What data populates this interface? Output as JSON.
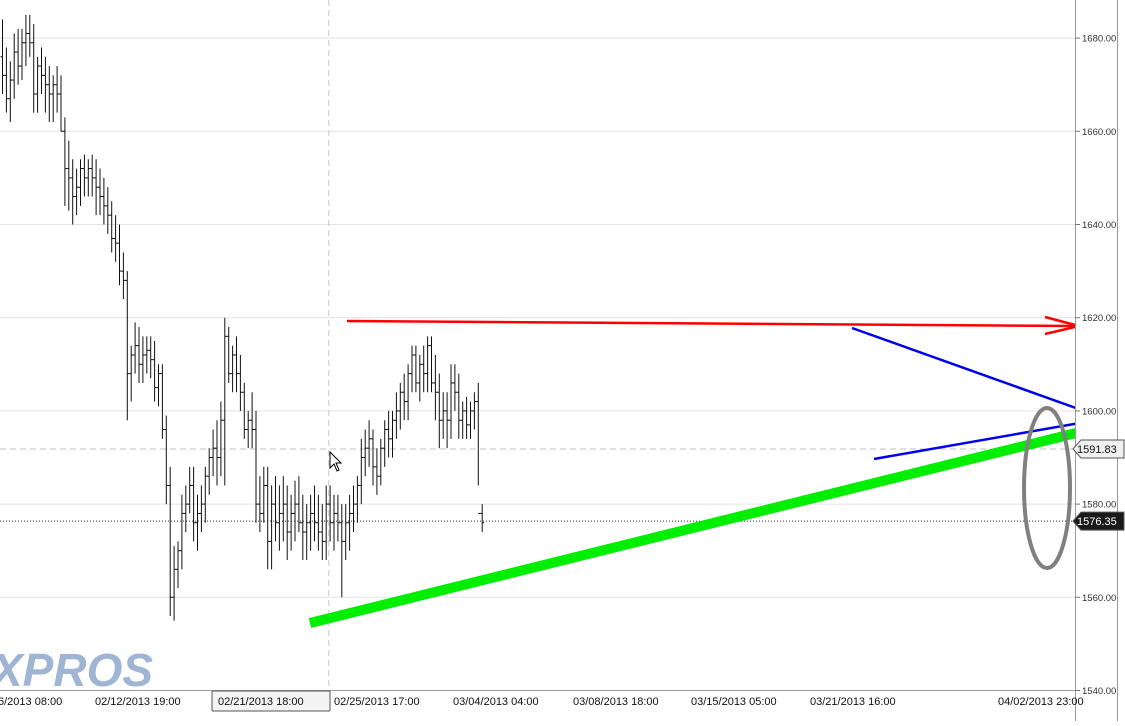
{
  "chart_data": {
    "type": "ohlc",
    "title": "",
    "xlabel": "",
    "ylabel": "",
    "ylim": [
      1540,
      1690
    ],
    "y_ticks": [
      1540,
      1560,
      1580,
      1600,
      1620,
      1640,
      1660,
      1680
    ],
    "y_tick_labels": [
      "1540.00",
      "1560.00",
      "1580.00",
      "1600.00",
      "1620.00",
      "1640.00",
      "1660.00",
      "1680.00"
    ],
    "x_tick_labels": [
      {
        "label": "6/2013 08:00",
        "bar": 0
      },
      {
        "label": "02/12/2013 19:00",
        "bar": 26
      },
      {
        "label": "02/21/2013 18:00",
        "bar": 62,
        "highlighted": true
      },
      {
        "label": "02/25/2013 17:00",
        "bar": 82
      },
      {
        "label": "03/04/2013 04:00",
        "bar": 114
      },
      {
        "label": "03/08/2013 18:00",
        "bar": 146
      },
      {
        "label": "03/15/2013 05:00",
        "bar": 178
      },
      {
        "label": "03/21/2013 16:00",
        "bar": 210
      },
      {
        "label": "04/02/2013 23:00",
        "bar": 260
      }
    ],
    "price_tags": [
      {
        "label": "1591.83",
        "value": 1591.83,
        "style": "light"
      },
      {
        "label": "1576.35",
        "value": 1576.35,
        "style": "dark"
      }
    ],
    "reference_lines": [
      {
        "value": 1591.83,
        "style": "dashed"
      },
      {
        "value": 1576.35,
        "style": "dotted"
      }
    ],
    "crosshair_bar": 62,
    "watermark": "XPROS",
    "grid": true,
    "bars": [
      [
        1676,
        1684,
        1668,
        1672
      ],
      [
        1672,
        1678,
        1664,
        1667
      ],
      [
        1667,
        1675,
        1662,
        1671
      ],
      [
        1671,
        1681,
        1667,
        1677
      ],
      [
        1677,
        1682,
        1670,
        1674
      ],
      [
        1674,
        1682,
        1671,
        1679
      ],
      [
        1679,
        1685,
        1674,
        1681
      ],
      [
        1681,
        1685,
        1676,
        1679
      ],
      [
        1679,
        1683,
        1664,
        1668
      ],
      [
        1668,
        1676,
        1664,
        1674
      ],
      [
        1674,
        1678,
        1668,
        1672
      ],
      [
        1672,
        1676,
        1664,
        1670
      ],
      [
        1670,
        1674,
        1662,
        1668
      ],
      [
        1668,
        1672,
        1662,
        1670
      ],
      [
        1670,
        1674,
        1664,
        1668
      ],
      [
        1668,
        1672,
        1660,
        1660
      ],
      [
        1660,
        1663,
        1644,
        1652
      ],
      [
        1652,
        1658,
        1643,
        1650
      ],
      [
        1650,
        1654,
        1640,
        1646
      ],
      [
        1646,
        1652,
        1642,
        1648
      ],
      [
        1648,
        1654,
        1644,
        1652
      ],
      [
        1652,
        1655,
        1646,
        1650
      ],
      [
        1650,
        1654,
        1646,
        1652
      ],
      [
        1652,
        1655,
        1646,
        1650
      ],
      [
        1650,
        1654,
        1642,
        1648
      ],
      [
        1648,
        1652,
        1642,
        1646
      ],
      [
        1646,
        1650,
        1640,
        1644
      ],
      [
        1644,
        1648,
        1638,
        1642
      ],
      [
        1642,
        1645,
        1634,
        1637
      ],
      [
        1637,
        1642,
        1632,
        1636
      ],
      [
        1636,
        1640,
        1627,
        1630
      ],
      [
        1630,
        1634,
        1624,
        1628
      ],
      [
        1628,
        1630,
        1598,
        1608
      ],
      [
        1608,
        1614,
        1602,
        1612
      ],
      [
        1612,
        1619,
        1608,
        1614
      ],
      [
        1614,
        1618,
        1606,
        1610
      ],
      [
        1610,
        1616,
        1606,
        1612
      ],
      [
        1612,
        1616,
        1608,
        1613
      ],
      [
        1613,
        1616,
        1607,
        1611
      ],
      [
        1611,
        1615,
        1602,
        1605
      ],
      [
        1605,
        1610,
        1601,
        1608
      ],
      [
        1608,
        1610,
        1594,
        1596
      ],
      [
        1596,
        1599,
        1580,
        1584
      ],
      [
        1584,
        1588,
        1556,
        1560
      ],
      [
        1560,
        1571,
        1555,
        1566
      ],
      [
        1566,
        1572,
        1562,
        1570
      ],
      [
        1570,
        1582,
        1566,
        1578
      ],
      [
        1578,
        1584,
        1574,
        1580
      ],
      [
        1580,
        1588,
        1578,
        1584
      ],
      [
        1584,
        1588,
        1572,
        1576
      ],
      [
        1576,
        1582,
        1570,
        1578
      ],
      [
        1578,
        1584,
        1574,
        1580
      ],
      [
        1580,
        1588,
        1576,
        1586
      ],
      [
        1586,
        1592,
        1582,
        1590
      ],
      [
        1590,
        1596,
        1586,
        1592
      ],
      [
        1592,
        1598,
        1584,
        1590
      ],
      [
        1590,
        1602,
        1586,
        1598
      ],
      [
        1598,
        1620,
        1584,
        1616
      ],
      [
        1616,
        1618,
        1606,
        1608
      ],
      [
        1608,
        1614,
        1604,
        1612
      ],
      [
        1612,
        1616,
        1604,
        1608
      ],
      [
        1608,
        1612,
        1600,
        1604
      ],
      [
        1604,
        1606,
        1594,
        1596
      ],
      [
        1596,
        1600,
        1592,
        1598
      ],
      [
        1598,
        1604,
        1592,
        1596
      ],
      [
        1596,
        1600,
        1576,
        1580
      ],
      [
        1580,
        1586,
        1574,
        1578
      ],
      [
        1578,
        1588,
        1576,
        1584
      ],
      [
        1584,
        1588,
        1566,
        1572
      ],
      [
        1572,
        1584,
        1566,
        1580
      ],
      [
        1580,
        1586,
        1572,
        1576
      ],
      [
        1576,
        1584,
        1570,
        1578
      ],
      [
        1578,
        1586,
        1572,
        1580
      ],
      [
        1580,
        1584,
        1568,
        1574
      ],
      [
        1574,
        1582,
        1570,
        1578
      ],
      [
        1578,
        1585,
        1572,
        1580
      ],
      [
        1580,
        1586,
        1574,
        1576
      ],
      [
        1576,
        1582,
        1568,
        1574
      ],
      [
        1574,
        1580,
        1568,
        1576
      ],
      [
        1576,
        1582,
        1570,
        1578
      ],
      [
        1578,
        1584,
        1572,
        1576
      ],
      [
        1576,
        1582,
        1570,
        1574
      ],
      [
        1574,
        1580,
        1568,
        1572
      ],
      [
        1572,
        1584,
        1568,
        1580
      ],
      [
        1580,
        1584,
        1572,
        1576
      ],
      [
        1576,
        1582,
        1570,
        1578
      ],
      [
        1578,
        1582,
        1572,
        1576
      ],
      [
        1576,
        1580,
        1560,
        1572
      ],
      [
        1572,
        1580,
        1568,
        1576
      ],
      [
        1576,
        1582,
        1570,
        1578
      ],
      [
        1578,
        1584,
        1574,
        1580
      ],
      [
        1580,
        1586,
        1576,
        1584
      ],
      [
        1584,
        1594,
        1580,
        1590
      ],
      [
        1590,
        1596,
        1586,
        1592
      ],
      [
        1592,
        1598,
        1588,
        1594
      ],
      [
        1594,
        1596,
        1584,
        1588
      ],
      [
        1588,
        1592,
        1582,
        1586
      ],
      [
        1586,
        1594,
        1584,
        1592
      ],
      [
        1592,
        1598,
        1588,
        1596
      ],
      [
        1596,
        1600,
        1590,
        1594
      ],
      [
        1594,
        1600,
        1590,
        1598
      ],
      [
        1598,
        1604,
        1594,
        1600
      ],
      [
        1600,
        1606,
        1596,
        1604
      ],
      [
        1604,
        1608,
        1598,
        1602
      ],
      [
        1602,
        1610,
        1598,
        1608
      ],
      [
        1608,
        1614,
        1604,
        1612
      ],
      [
        1612,
        1614,
        1604,
        1606
      ],
      [
        1606,
        1612,
        1602,
        1610
      ],
      [
        1610,
        1614,
        1604,
        1608
      ],
      [
        1608,
        1616,
        1604,
        1614
      ],
      [
        1614,
        1616,
        1604,
        1606
      ],
      [
        1606,
        1612,
        1598,
        1604
      ],
      [
        1604,
        1608,
        1592,
        1598
      ],
      [
        1598,
        1604,
        1594,
        1600
      ],
      [
        1600,
        1604,
        1592,
        1598
      ],
      [
        1598,
        1610,
        1594,
        1606
      ],
      [
        1606,
        1610,
        1600,
        1604
      ],
      [
        1604,
        1608,
        1594,
        1598
      ],
      [
        1598,
        1602,
        1594,
        1600
      ],
      [
        1600,
        1603,
        1594,
        1597
      ],
      [
        1597,
        1602,
        1594,
        1600
      ],
      [
        1600,
        1604,
        1596,
        1602
      ],
      [
        1602,
        1606,
        1584,
        1578
      ],
      [
        1578,
        1580,
        1574,
        1576
      ]
    ]
  },
  "annotations": [
    {
      "type": "resistance-arrow",
      "color": "#ff0000"
    },
    {
      "type": "rising-trendline",
      "color": "#00ee00"
    },
    {
      "type": "triangle-upper",
      "color": "#0000ee"
    },
    {
      "type": "triangle-lower",
      "color": "#0000ee"
    },
    {
      "type": "ellipse",
      "color": "#808080"
    }
  ]
}
